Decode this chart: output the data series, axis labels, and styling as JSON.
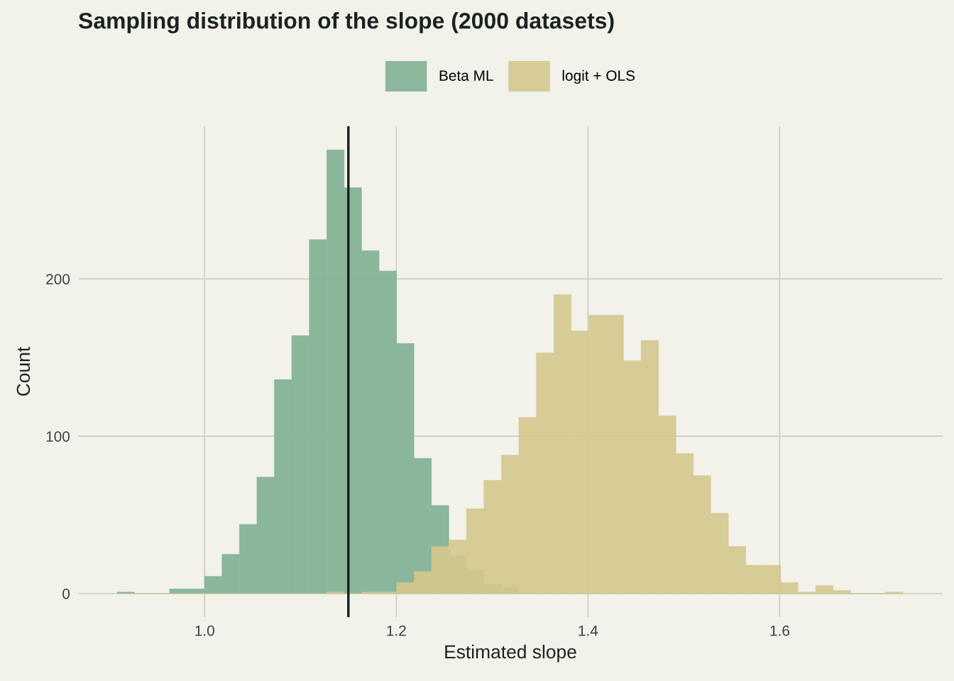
{
  "chart_data": {
    "type": "histogram",
    "title": "Sampling distribution of the slope (2000 datasets)",
    "xlabel": "Estimated slope",
    "ylabel": "Count",
    "bins": [
      0.9088,
      0.927,
      0.9452,
      0.9634,
      0.9816,
      0.9999,
      1.0181,
      1.0363,
      1.0545,
      1.0727,
      1.0909,
      1.1092,
      1.1274,
      1.1456,
      1.1638,
      1.1821,
      1.2003,
      1.2185,
      1.2367,
      1.2549,
      1.2732,
      1.2914,
      1.3096,
      1.3278,
      1.346,
      1.3643,
      1.3825,
      1.4007,
      1.4189,
      1.4371,
      1.4554,
      1.4736,
      1.4918,
      1.51,
      1.5282,
      1.5465,
      1.5647,
      1.5829,
      1.6011,
      1.6193,
      1.6376,
      1.6558,
      1.674,
      1.6922,
      1.7104,
      1.7287
    ],
    "series": [
      {
        "name": "Beta ML",
        "color": "#82b295",
        "values": [
          1,
          0,
          0,
          3,
          3,
          11,
          25,
          44,
          74,
          136,
          164,
          225,
          282,
          258,
          218,
          205,
          159,
          86,
          56,
          24,
          15,
          6,
          4,
          0,
          0,
          0,
          0,
          0,
          0,
          0,
          0,
          0,
          0,
          0,
          0,
          0,
          0,
          0,
          0,
          0,
          0,
          0,
          0,
          0,
          0
        ]
      },
      {
        "name": "logit + OLS",
        "color": "#d5c88f",
        "values": [
          0,
          0,
          0,
          0,
          0,
          0,
          0,
          0,
          0,
          0,
          0,
          0,
          1,
          0,
          1,
          1,
          7,
          14,
          30,
          34,
          54,
          72,
          88,
          112,
          153,
          190,
          167,
          177,
          177,
          148,
          161,
          113,
          89,
          75,
          51,
          30,
          18,
          18,
          7,
          1,
          5,
          2,
          0,
          0,
          1
        ]
      }
    ],
    "ref_lines": [
      {
        "axis": "x",
        "value": 1.15,
        "color": "#1a2320"
      }
    ],
    "xlim": [
      0.868,
      1.77
    ],
    "ylim": [
      -15,
      297
    ],
    "xticks": [
      {
        "value": 1.0,
        "label": "1.0"
      },
      {
        "value": 1.2,
        "label": "1.2"
      },
      {
        "value": 1.4,
        "label": "1.4"
      },
      {
        "value": 1.6,
        "label": "1.6"
      }
    ],
    "yticks": [
      0,
      100,
      200
    ],
    "grid": true,
    "legend": "top"
  }
}
